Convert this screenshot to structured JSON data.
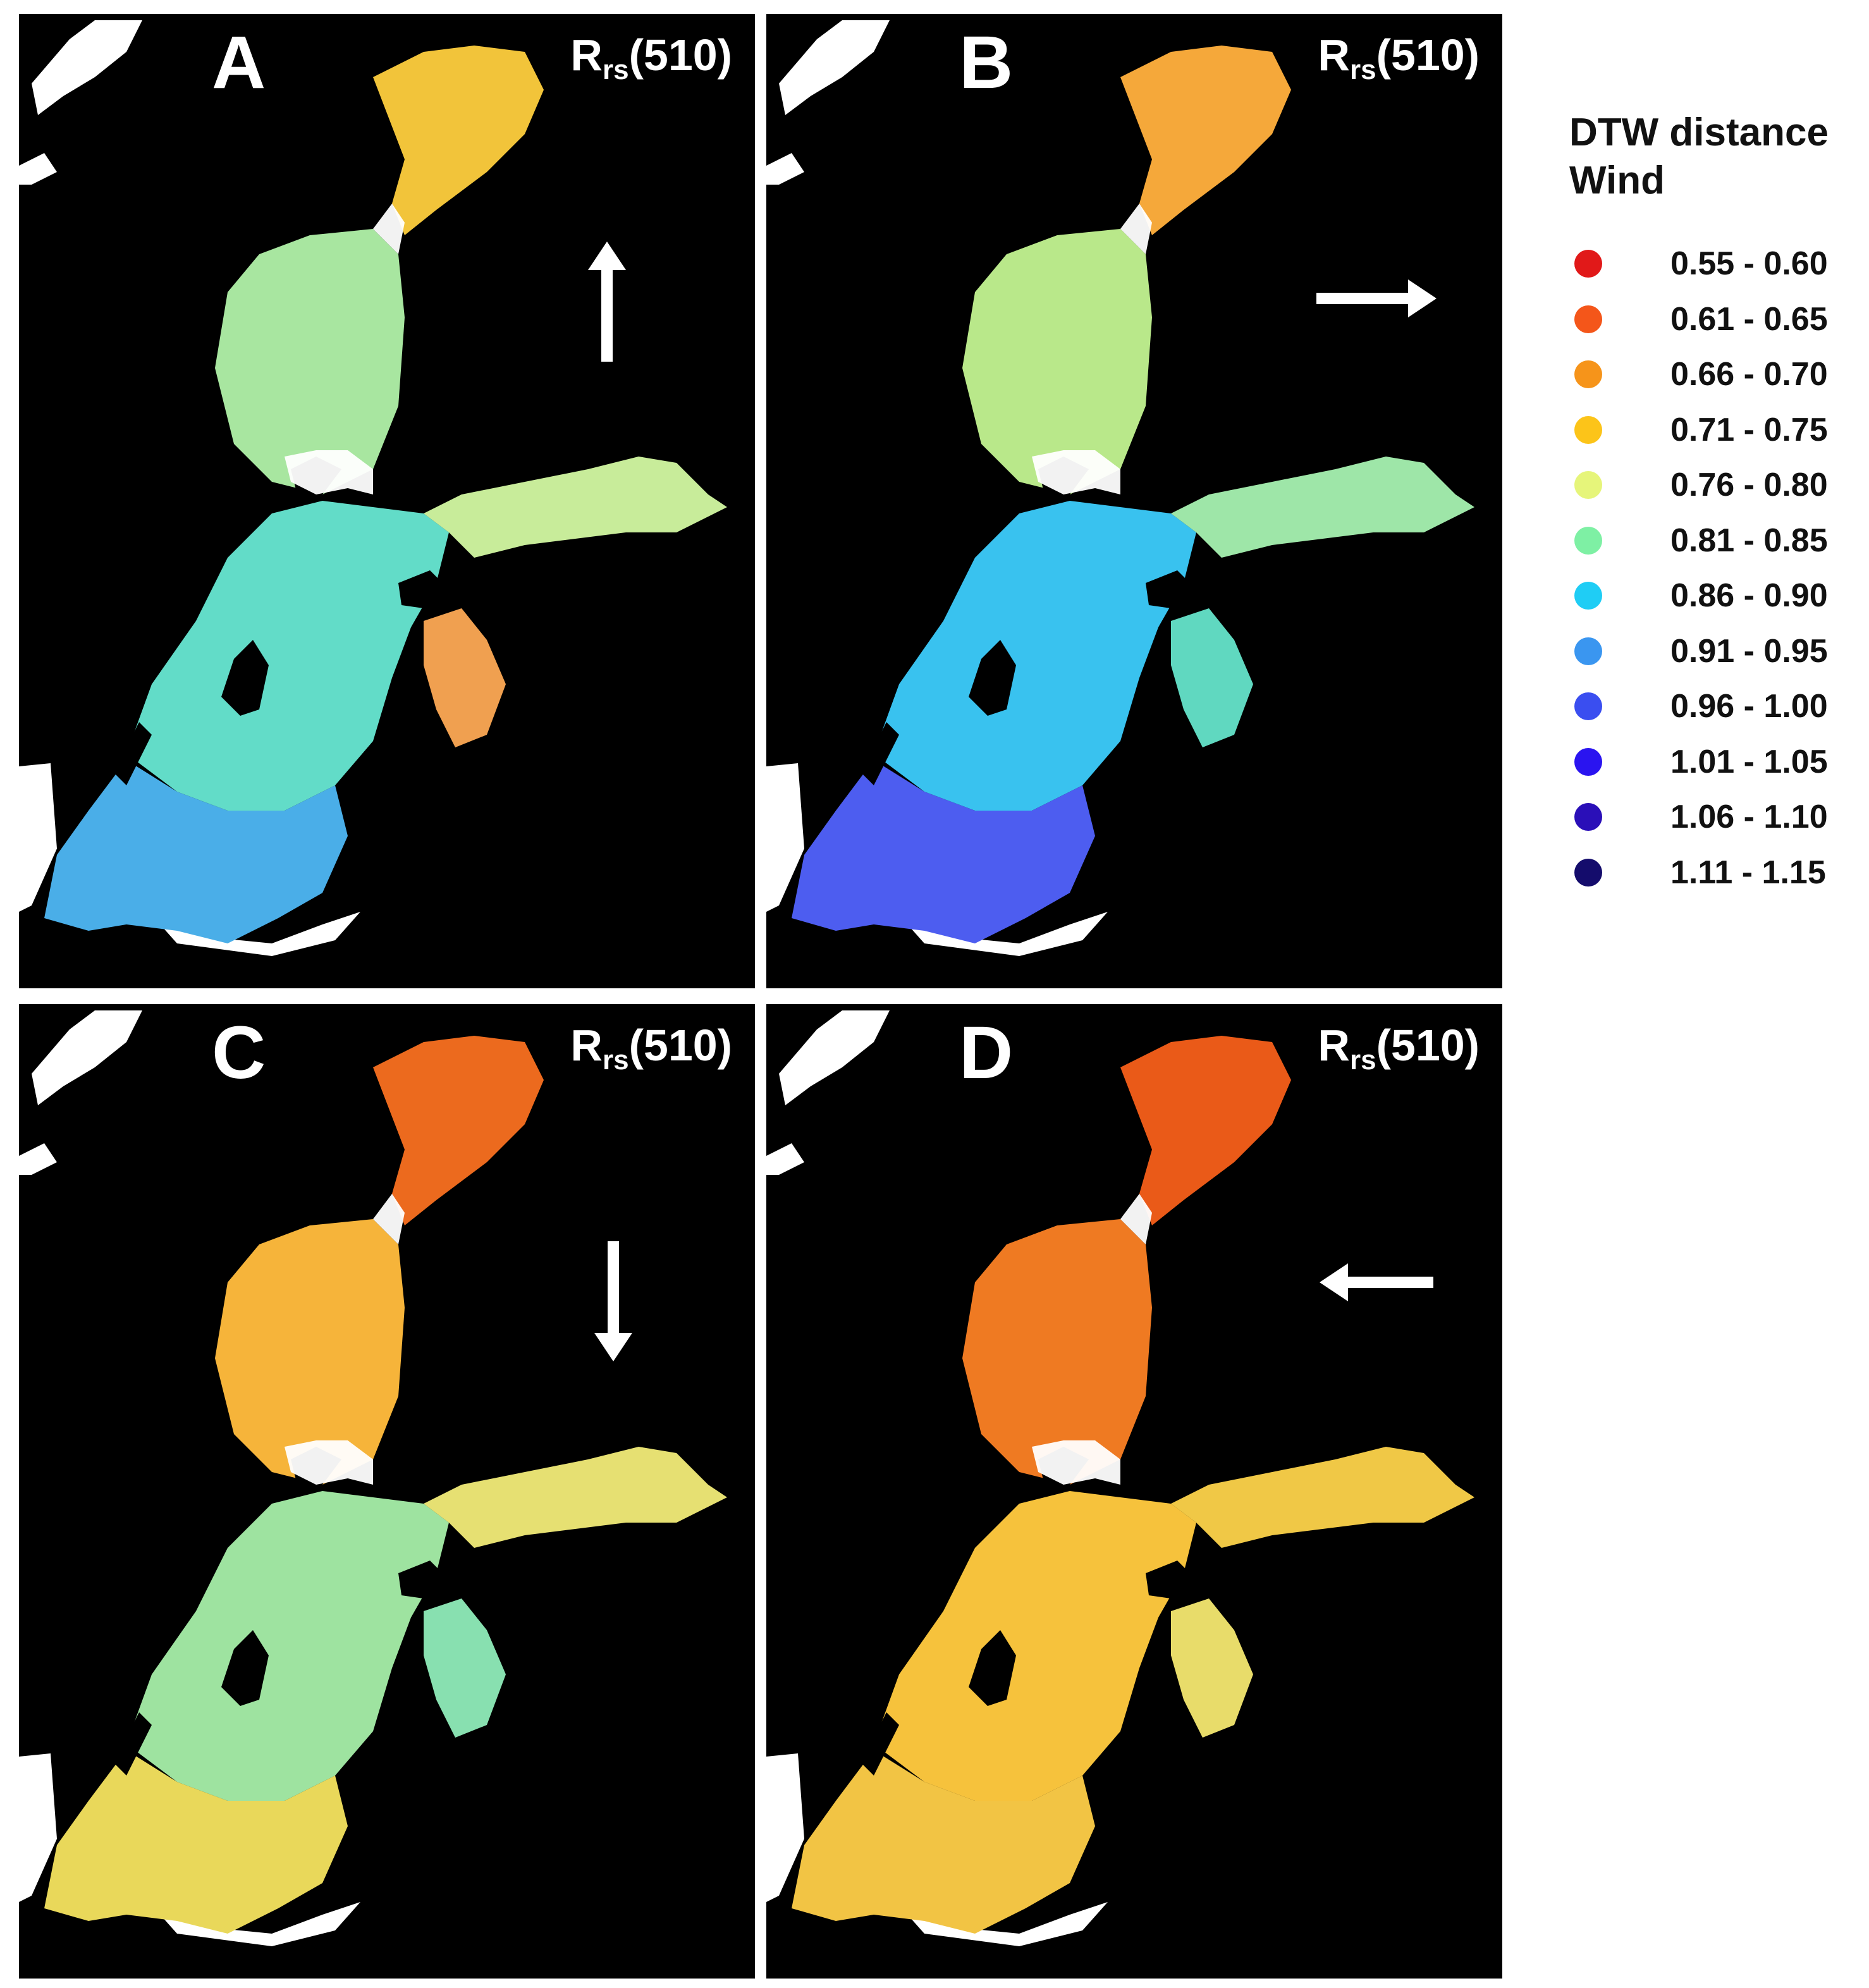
{
  "panels": [
    {
      "letter": "A",
      "variable": "R",
      "subscript": "rs",
      "band": "(510)",
      "wind_direction": "up-arrow",
      "basin_colors": {
        "bothnian_bay": "#f2c43a",
        "bothnian_sea": "#a8e6a0",
        "baltic_proper": "#62dcc8",
        "south": "#4aaee8",
        "gulf_finland": "#c8ec9a",
        "gulf_riga": "#f0a050"
      }
    },
    {
      "letter": "B",
      "variable": "R",
      "subscript": "rs",
      "band": "(510)",
      "wind_direction": "right-arrow",
      "basin_colors": {
        "bothnian_bay": "#f5a83a",
        "bothnian_sea": "#b9e88a",
        "baltic_proper": "#39c2ef",
        "south": "#4d5df0",
        "gulf_finland": "#9ee6a8",
        "gulf_riga": "#60d8c0"
      }
    },
    {
      "letter": "C",
      "variable": "R",
      "subscript": "rs",
      "band": "(510)",
      "wind_direction": "down-arrow",
      "basin_colors": {
        "bothnian_bay": "#ec6a1e",
        "bothnian_sea": "#f6b43a",
        "baltic_proper": "#9ee3a0",
        "south": "#e9d85a",
        "gulf_finland": "#e6e072",
        "gulf_riga": "#88e0b0"
      }
    },
    {
      "letter": "D",
      "variable": "R",
      "subscript": "rs",
      "band": "(510)",
      "wind_direction": "left-arrow",
      "basin_colors": {
        "bothnian_bay": "#ea5a18",
        "bothnian_sea": "#ef7a22",
        "baltic_proper": "#f6c23c",
        "south": "#f2c444",
        "gulf_finland": "#f0c846",
        "gulf_riga": "#e8dc6a"
      }
    }
  ],
  "legend": {
    "title_line1": "DTW distance",
    "title_line2": "Wind",
    "items": [
      {
        "label": "0.55 - 0.60",
        "color": "#e11919"
      },
      {
        "label": "0.61 - 0.65",
        "color": "#f4561a"
      },
      {
        "label": "0.66 - 0.70",
        "color": "#f6941a"
      },
      {
        "label": "0.71 - 0.75",
        "color": "#fcc419"
      },
      {
        "label": "0.76 - 0.80",
        "color": "#e6f57a"
      },
      {
        "label": "0.81 - 0.85",
        "color": "#7ef0a4"
      },
      {
        "label": "0.86 - 0.90",
        "color": "#1fcdf5"
      },
      {
        "label": "0.91 - 0.95",
        "color": "#3a96f0"
      },
      {
        "label": "0.96 - 1.00",
        "color": "#3a4ef0"
      },
      {
        "label": "1.01 - 1.05",
        "color": "#2a14f0"
      },
      {
        "label": "1.06 - 1.10",
        "color": "#2a0fb8"
      },
      {
        "label": "1.11 - 1.15",
        "color": "#140c6c"
      }
    ]
  }
}
